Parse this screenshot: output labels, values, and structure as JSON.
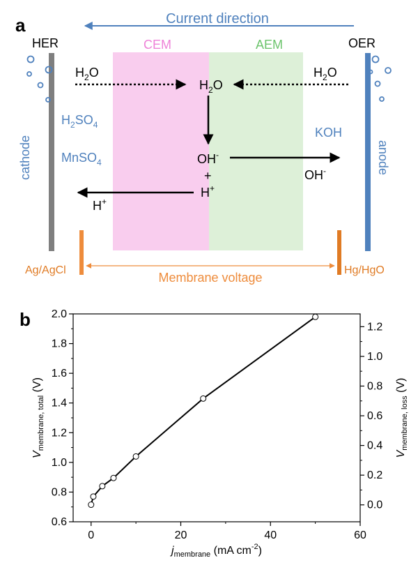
{
  "colors": {
    "blue": "#4f81bd",
    "orange": "#ee8c3c",
    "orange_dark": "#e07b24",
    "cem_fill": "#f9cdee",
    "aem_fill": "#ddf0d8",
    "cem_text": "#ee82d8",
    "aem_text": "#6cc46c",
    "gray": "#7f7f7f",
    "black": "#000000"
  },
  "panel_a": {
    "label": "a",
    "current_direction": "Current direction",
    "her": "HER",
    "oer": "OER",
    "cem": "CEM",
    "aem": "AEM",
    "h2o": "H",
    "o": "O",
    "sub2": "2",
    "sub4": "4",
    "h2so4_main": "H",
    "so": "SO",
    "mnso4": "MnSO",
    "koh": "KOH",
    "cathode": "cathode",
    "anode": "anode",
    "oh": "OH",
    "minus": "-",
    "plus_sign": "+",
    "h_plus_h": "H",
    "plus_sup": "+",
    "ref_left": "Ag/AgCl",
    "ref_right": "Hg/HgO",
    "membrane_voltage": "Membrane voltage"
  },
  "panel_b": {
    "label": "b"
  },
  "chart_data": {
    "type": "line",
    "title": "",
    "x": [
      0,
      0.5,
      2.5,
      5,
      10,
      25,
      50
    ],
    "series": [
      {
        "name": "V membrane,total",
        "values": [
          0.715,
          0.77,
          0.84,
          0.895,
          1.04,
          1.43,
          1.98
        ]
      }
    ],
    "xlabel_main": "j",
    "xlabel_sub": "membrane",
    "xlabel_units": "(mA cm",
    "xlabel_units_sup": "-2",
    "xlabel_units_close": ")",
    "ylabel_main": "V",
    "ylabel_sub": "membrane, total",
    "ylabel_units": "(V)",
    "y2label_main": "V",
    "y2label_sub": "membrane, loss",
    "y2label_units": "(V)",
    "xlim": [
      -4,
      60
    ],
    "ylim": [
      0.6,
      2.0
    ],
    "y2lim": [
      -0.114,
      1.286
    ],
    "xticks": [
      0,
      20,
      40,
      60
    ],
    "xtick_labels": [
      "0",
      "20",
      "40",
      "60"
    ],
    "yticks": [
      0.6,
      0.8,
      1.0,
      1.2,
      1.4,
      1.6,
      1.8,
      2.0
    ],
    "ytick_labels": [
      "0.6",
      "0.8",
      "1.0",
      "1.2",
      "1.4",
      "1.6",
      "1.8",
      "2.0"
    ],
    "y2ticks": [
      0.0,
      0.2,
      0.4,
      0.6,
      0.8,
      1.0,
      1.2
    ],
    "y2tick_labels": [
      "0.0",
      "0.2",
      "0.4",
      "0.6",
      "0.8",
      "1.0",
      "1.2"
    ],
    "grid": false
  }
}
